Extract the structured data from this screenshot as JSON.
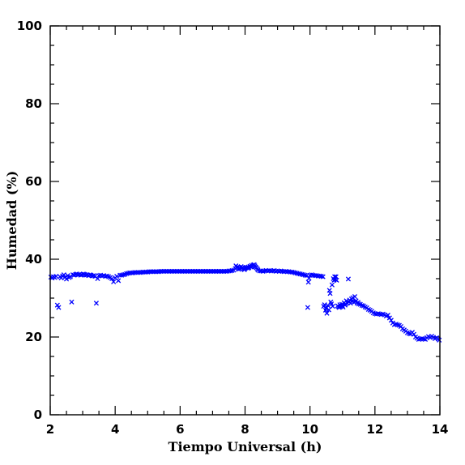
{
  "chart_data": {
    "type": "scatter",
    "title": "",
    "xlabel": "Tiempo Universal (h)",
    "ylabel": "Humedad (%)",
    "xlim": [
      2,
      14
    ],
    "ylim": [
      0,
      100
    ],
    "x_major_ticks": [
      2,
      4,
      6,
      8,
      10,
      12,
      14
    ],
    "y_major_ticks": [
      0,
      20,
      40,
      60,
      80,
      100
    ],
    "x_minor_step": 0.5,
    "y_minor_step": 5,
    "grid": false,
    "legend": "none",
    "marker": "x",
    "marker_color": "#0000ff",
    "series": [
      {
        "points": [
          [
            2.02,
            35.4
          ],
          [
            2.06,
            35.2
          ],
          [
            2.1,
            35.5
          ],
          [
            2.14,
            35.3
          ],
          [
            2.18,
            35.6
          ],
          [
            2.22,
            28.2
          ],
          [
            2.26,
            27.6
          ],
          [
            2.3,
            35.5
          ],
          [
            2.34,
            35.2
          ],
          [
            2.38,
            35.7
          ],
          [
            2.42,
            36.0
          ],
          [
            2.46,
            35.4
          ],
          [
            2.5,
            34.9
          ],
          [
            2.54,
            35.8
          ],
          [
            2.58,
            35.3
          ],
          [
            2.62,
            35.5
          ],
          [
            2.66,
            29.0
          ],
          [
            2.7,
            36.0
          ],
          [
            2.74,
            35.9
          ],
          [
            2.78,
            36.1
          ],
          [
            2.82,
            36.2
          ],
          [
            2.86,
            36.0
          ],
          [
            2.9,
            36.1
          ],
          [
            2.94,
            35.9
          ],
          [
            2.98,
            36.0
          ],
          [
            3.02,
            36.2
          ],
          [
            3.06,
            36.1
          ],
          [
            3.1,
            35.9
          ],
          [
            3.14,
            36.0
          ],
          [
            3.18,
            35.8
          ],
          [
            3.22,
            36.0
          ],
          [
            3.26,
            35.9
          ],
          [
            3.3,
            35.7
          ],
          [
            3.34,
            35.8
          ],
          [
            3.38,
            35.6
          ],
          [
            3.42,
            28.7
          ],
          [
            3.46,
            35.0
          ],
          [
            3.5,
            35.8
          ],
          [
            3.55,
            35.9
          ],
          [
            3.6,
            35.7
          ],
          [
            3.65,
            35.8
          ],
          [
            3.7,
            35.6
          ],
          [
            3.75,
            35.7
          ],
          [
            3.8,
            35.5
          ],
          [
            3.85,
            35.3
          ],
          [
            3.9,
            35.0
          ],
          [
            3.95,
            34.2
          ],
          [
            4.0,
            35.2
          ],
          [
            4.05,
            35.6
          ],
          [
            4.1,
            34.5
          ],
          [
            4.15,
            35.9
          ],
          [
            4.2,
            35.9
          ],
          [
            4.25,
            36.0
          ],
          [
            4.3,
            36.1
          ],
          [
            4.35,
            36.3
          ],
          [
            4.4,
            36.4
          ],
          [
            4.45,
            36.5
          ],
          [
            4.5,
            36.5
          ],
          [
            4.55,
            36.5
          ],
          [
            4.6,
            36.6
          ],
          [
            4.65,
            36.6
          ],
          [
            4.7,
            36.6
          ],
          [
            4.75,
            36.6
          ],
          [
            4.8,
            36.6
          ],
          [
            4.85,
            36.7
          ],
          [
            4.9,
            36.7
          ],
          [
            4.95,
            36.7
          ],
          [
            5.0,
            36.7
          ],
          [
            5.05,
            36.8
          ],
          [
            5.1,
            36.8
          ],
          [
            5.15,
            36.8
          ],
          [
            5.2,
            36.8
          ],
          [
            5.25,
            36.8
          ],
          [
            5.3,
            36.8
          ],
          [
            5.35,
            36.8
          ],
          [
            5.4,
            36.9
          ],
          [
            5.45,
            36.9
          ],
          [
            5.5,
            36.9
          ],
          [
            5.55,
            36.9
          ],
          [
            5.6,
            36.9
          ],
          [
            5.65,
            36.9
          ],
          [
            5.7,
            36.9
          ],
          [
            5.75,
            36.9
          ],
          [
            5.8,
            36.9
          ],
          [
            5.85,
            36.9
          ],
          [
            5.9,
            36.9
          ],
          [
            5.95,
            36.9
          ],
          [
            6.0,
            36.9
          ],
          [
            6.05,
            36.9
          ],
          [
            6.1,
            36.9
          ],
          [
            6.15,
            36.9
          ],
          [
            6.2,
            36.9
          ],
          [
            6.25,
            36.9
          ],
          [
            6.3,
            36.9
          ],
          [
            6.35,
            36.9
          ],
          [
            6.4,
            36.9
          ],
          [
            6.45,
            36.9
          ],
          [
            6.5,
            36.9
          ],
          [
            6.55,
            36.9
          ],
          [
            6.6,
            36.9
          ],
          [
            6.65,
            36.9
          ],
          [
            6.7,
            36.9
          ],
          [
            6.75,
            36.9
          ],
          [
            6.8,
            36.9
          ],
          [
            6.85,
            36.9
          ],
          [
            6.9,
            36.9
          ],
          [
            6.95,
            36.9
          ],
          [
            7.0,
            36.9
          ],
          [
            7.05,
            36.9
          ],
          [
            7.1,
            36.9
          ],
          [
            7.15,
            36.9
          ],
          [
            7.2,
            36.9
          ],
          [
            7.25,
            36.9
          ],
          [
            7.3,
            36.9
          ],
          [
            7.35,
            36.9
          ],
          [
            7.4,
            36.9
          ],
          [
            7.45,
            36.9
          ],
          [
            7.5,
            37.0
          ],
          [
            7.55,
            37.0
          ],
          [
            7.6,
            37.1
          ],
          [
            7.65,
            37.2
          ],
          [
            7.7,
            37.6
          ],
          [
            7.72,
            38.3
          ],
          [
            7.75,
            37.9
          ],
          [
            7.78,
            38.0
          ],
          [
            7.8,
            37.4
          ],
          [
            7.82,
            37.8
          ],
          [
            7.85,
            37.6
          ],
          [
            7.88,
            38.1
          ],
          [
            7.9,
            37.7
          ],
          [
            7.92,
            37.9
          ],
          [
            7.95,
            37.5
          ],
          [
            7.98,
            37.3
          ],
          [
            8.0,
            37.6
          ],
          [
            8.02,
            37.8
          ],
          [
            8.05,
            37.9
          ],
          [
            8.08,
            37.7
          ],
          [
            8.1,
            38.0
          ],
          [
            8.12,
            37.8
          ],
          [
            8.15,
            38.2
          ],
          [
            8.18,
            38.0
          ],
          [
            8.2,
            38.4
          ],
          [
            8.22,
            38.1
          ],
          [
            8.25,
            38.5
          ],
          [
            8.28,
            38.6
          ],
          [
            8.3,
            38.3
          ],
          [
            8.32,
            38.0
          ],
          [
            8.35,
            37.8
          ],
          [
            8.38,
            37.5
          ],
          [
            8.4,
            37.2
          ],
          [
            8.45,
            37.0
          ],
          [
            8.5,
            37.0
          ],
          [
            8.55,
            36.9
          ],
          [
            8.6,
            37.0
          ],
          [
            8.65,
            37.1
          ],
          [
            8.7,
            37.0
          ],
          [
            8.75,
            37.1
          ],
          [
            8.8,
            37.0
          ],
          [
            8.85,
            37.0
          ],
          [
            8.9,
            37.1
          ],
          [
            8.95,
            36.9
          ],
          [
            9.0,
            37.0
          ],
          [
            9.05,
            36.9
          ],
          [
            9.1,
            37.0
          ],
          [
            9.15,
            36.9
          ],
          [
            9.2,
            36.8
          ],
          [
            9.25,
            36.9
          ],
          [
            9.3,
            36.8
          ],
          [
            9.35,
            36.8
          ],
          [
            9.4,
            36.7
          ],
          [
            9.45,
            36.7
          ],
          [
            9.5,
            36.6
          ],
          [
            9.55,
            36.5
          ],
          [
            9.6,
            36.4
          ],
          [
            9.65,
            36.3
          ],
          [
            9.7,
            36.2
          ],
          [
            9.75,
            36.1
          ],
          [
            9.8,
            36.0
          ],
          [
            9.85,
            35.9
          ],
          [
            9.9,
            35.8
          ],
          [
            9.93,
            27.6
          ],
          [
            9.95,
            34.1
          ],
          [
            9.97,
            35.1
          ],
          [
            10.0,
            35.9
          ],
          [
            10.05,
            36.0
          ],
          [
            10.1,
            35.9
          ],
          [
            10.15,
            35.8
          ],
          [
            10.2,
            35.8
          ],
          [
            10.25,
            35.7
          ],
          [
            10.3,
            35.7
          ],
          [
            10.35,
            35.6
          ],
          [
            10.4,
            35.5
          ],
          [
            10.42,
            27.9
          ],
          [
            10.45,
            28.3
          ],
          [
            10.48,
            26.9
          ],
          [
            10.5,
            27.4
          ],
          [
            10.52,
            26.1
          ],
          [
            10.55,
            28.1
          ],
          [
            10.58,
            27.0
          ],
          [
            10.6,
            32.0
          ],
          [
            10.62,
            31.2
          ],
          [
            10.64,
            29.0
          ],
          [
            10.66,
            28.5
          ],
          [
            10.68,
            33.4
          ],
          [
            10.7,
            27.9
          ],
          [
            10.72,
            35.0
          ],
          [
            10.74,
            34.6
          ],
          [
            10.76,
            35.5
          ],
          [
            10.78,
            34.8
          ],
          [
            10.8,
            35.5
          ],
          [
            10.82,
            34.6
          ],
          [
            10.85,
            28.0
          ],
          [
            10.88,
            27.8
          ],
          [
            10.9,
            27.6
          ],
          [
            10.92,
            28.3
          ],
          [
            10.95,
            27.8
          ],
          [
            10.98,
            28.4
          ],
          [
            11.0,
            28.0
          ],
          [
            11.02,
            27.7
          ],
          [
            11.05,
            28.8
          ],
          [
            11.08,
            28.2
          ],
          [
            11.1,
            28.5
          ],
          [
            11.12,
            29.3
          ],
          [
            11.15,
            28.7
          ],
          [
            11.18,
            34.9
          ],
          [
            11.2,
            29.0
          ],
          [
            11.22,
            29.5
          ],
          [
            11.25,
            28.7
          ],
          [
            11.28,
            29.8
          ],
          [
            11.3,
            29.2
          ],
          [
            11.32,
            30.1
          ],
          [
            11.35,
            29.0
          ],
          [
            11.38,
            30.4
          ],
          [
            11.4,
            29.1
          ],
          [
            11.42,
            29.3
          ],
          [
            11.45,
            28.7
          ],
          [
            11.48,
            28.9
          ],
          [
            11.5,
            28.5
          ],
          [
            11.55,
            28.4
          ],
          [
            11.6,
            28.1
          ],
          [
            11.65,
            28.0
          ],
          [
            11.7,
            27.7
          ],
          [
            11.75,
            27.5
          ],
          [
            11.8,
            27.1
          ],
          [
            11.85,
            26.9
          ],
          [
            11.9,
            26.6
          ],
          [
            11.95,
            26.2
          ],
          [
            12.0,
            26.0
          ],
          [
            12.05,
            25.9
          ],
          [
            12.1,
            26.0
          ],
          [
            12.15,
            25.9
          ],
          [
            12.2,
            25.8
          ],
          [
            12.25,
            25.9
          ],
          [
            12.3,
            25.7
          ],
          [
            12.35,
            25.4
          ],
          [
            12.4,
            25.6
          ],
          [
            12.45,
            24.9
          ],
          [
            12.5,
            24.3
          ],
          [
            12.55,
            23.6
          ],
          [
            12.6,
            23.2
          ],
          [
            12.65,
            23.3
          ],
          [
            12.7,
            23.1
          ],
          [
            12.75,
            23.0
          ],
          [
            12.8,
            22.7
          ],
          [
            12.85,
            22.1
          ],
          [
            12.9,
            21.8
          ],
          [
            12.95,
            21.5
          ],
          [
            13.0,
            21.1
          ],
          [
            13.05,
            20.9
          ],
          [
            13.1,
            20.8
          ],
          [
            13.15,
            21.2
          ],
          [
            13.2,
            20.7
          ],
          [
            13.25,
            20.0
          ],
          [
            13.3,
            19.7
          ],
          [
            13.35,
            19.4
          ],
          [
            13.4,
            19.5
          ],
          [
            13.45,
            19.6
          ],
          [
            13.5,
            19.5
          ],
          [
            13.55,
            19.4
          ],
          [
            13.6,
            19.8
          ],
          [
            13.65,
            20.1
          ],
          [
            13.7,
            19.9
          ],
          [
            13.75,
            20.2
          ],
          [
            13.8,
            19.9
          ],
          [
            13.85,
            19.6
          ],
          [
            13.9,
            19.8
          ],
          [
            13.95,
            19.5
          ],
          [
            13.98,
            19.2
          ]
        ]
      }
    ]
  }
}
